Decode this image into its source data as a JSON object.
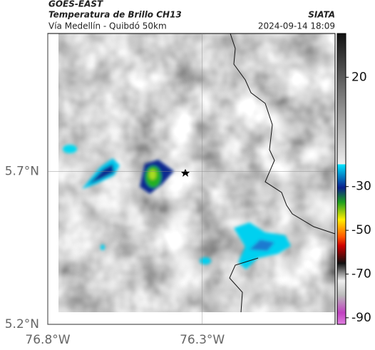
{
  "header": {
    "satellite": "GOES-EAST",
    "product": "Temperatura de Brillo CH13",
    "region": "Vía Medellín - Quibdó 50km",
    "source": "SIATA",
    "datetime": "2024-09-14 18:09"
  },
  "map": {
    "lat_lim": [
      5.2,
      6.15
    ],
    "lon_lim": [
      -76.8,
      -75.87
    ],
    "lat_ticks": [
      {
        "value": 5.2,
        "label": "5.2°N"
      },
      {
        "value": 5.7,
        "label": "5.7°N"
      }
    ],
    "lon_ticks": [
      {
        "value": -76.8,
        "label": "76.8°W"
      },
      {
        "value": -76.3,
        "label": "76.3°W"
      }
    ],
    "grid": true
  },
  "colorbar": {
    "lim": [
      -93,
      40
    ],
    "ticks": [
      20,
      -30,
      -50,
      -70,
      -90
    ]
  }
}
